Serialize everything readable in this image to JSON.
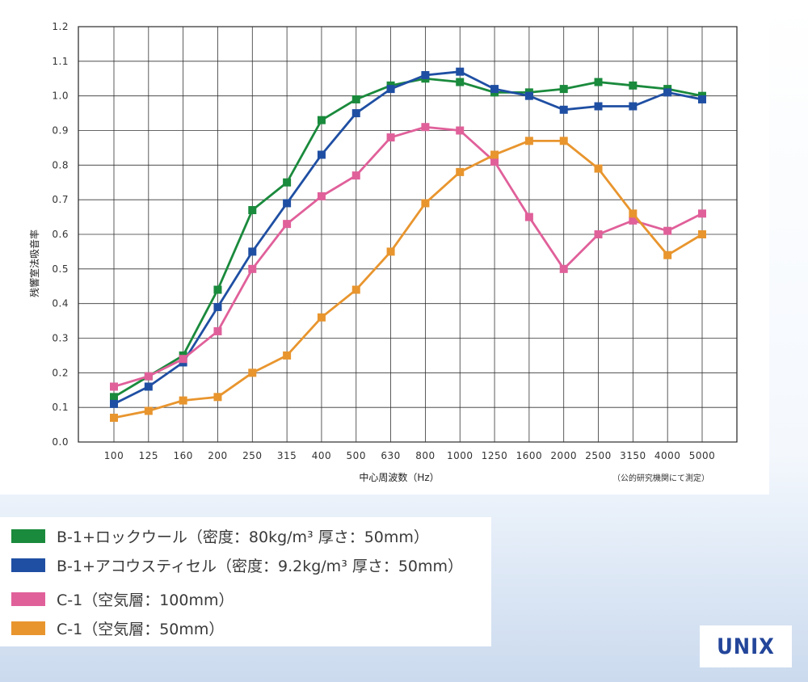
{
  "chart_data": {
    "type": "line",
    "ylabel": "残響室法吸音率",
    "xlabel": "中心周波数（Hz）",
    "note": "（公的研究機関にて測定）",
    "ylim": [
      0.0,
      1.2
    ],
    "y_ticks": [
      "0.0",
      "0.1",
      "0.2",
      "0.3",
      "0.4",
      "0.5",
      "0.6",
      "0.7",
      "0.8",
      "0.9",
      "1.0",
      "1.1",
      "1.2"
    ],
    "categories": [
      "100",
      "125",
      "160",
      "200",
      "250",
      "315",
      "400",
      "500",
      "630",
      "800",
      "1000",
      "1250",
      "1600",
      "2000",
      "2500",
      "3150",
      "4000",
      "5000"
    ],
    "grid": true,
    "series": [
      {
        "name": "B-1+ロックウール（密度：80kg/m³ 厚さ：50mm）",
        "color": "#1a8a3c",
        "values": [
          0.13,
          0.19,
          0.25,
          0.44,
          0.67,
          0.75,
          0.93,
          0.99,
          1.03,
          1.05,
          1.04,
          1.01,
          1.01,
          1.02,
          1.04,
          1.03,
          1.02,
          1.0
        ]
      },
      {
        "name": "B-1+アコウスティセル（密度：9.2kg/m³ 厚さ：50mm）",
        "color": "#1f4fa3",
        "values": [
          0.11,
          0.16,
          0.23,
          0.39,
          0.55,
          0.69,
          0.83,
          0.95,
          1.02,
          1.06,
          1.07,
          1.02,
          1.0,
          0.96,
          0.97,
          0.97,
          1.01,
          0.99
        ]
      },
      {
        "name": "C-1（空気層：100mm）",
        "color": "#e0609a",
        "values": [
          0.16,
          0.19,
          0.24,
          0.32,
          0.5,
          0.63,
          0.71,
          0.77,
          0.88,
          0.91,
          0.9,
          0.81,
          0.65,
          0.5,
          0.6,
          0.64,
          0.61,
          0.66
        ]
      },
      {
        "name": "C-1（空気層：50mm）",
        "color": "#e8952e",
        "values": [
          0.07,
          0.09,
          0.12,
          0.13,
          0.2,
          0.25,
          0.36,
          0.44,
          0.55,
          0.69,
          0.78,
          0.83,
          0.87,
          0.87,
          0.79,
          0.66,
          0.54,
          0.6
        ]
      }
    ]
  },
  "legend": {
    "items": [
      {
        "label": "B-1+ロックウール（密度：80kg/m³ 厚さ：50mm）",
        "color": "#1a8a3c"
      },
      {
        "label": "B-1+アコウスティセル（密度：9.2kg/m³ 厚さ：50mm）",
        "color": "#1f4fa3"
      },
      {
        "label": "C-1（空気層：100mm）",
        "color": "#e0609a"
      },
      {
        "label": "C-1（空気層：50mm）",
        "color": "#e8952e"
      }
    ]
  },
  "logo": {
    "text": "UNIX"
  }
}
